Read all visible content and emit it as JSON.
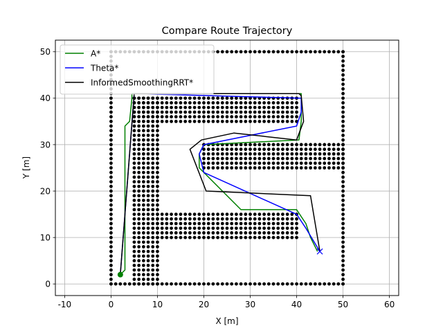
{
  "chart_data": {
    "type": "line",
    "title": "Compare Route Trajectory",
    "xlabel": "X [m]",
    "ylabel": "Y [m]",
    "xlim": [
      -12,
      62
    ],
    "ylim": [
      -2.5,
      52.5
    ],
    "xticks": [
      -10,
      0,
      10,
      20,
      30,
      40,
      50,
      60
    ],
    "yticks": [
      0,
      10,
      20,
      30,
      40,
      50
    ],
    "grid": true,
    "legend_position": "top-left",
    "start": {
      "x": 2,
      "y": 2,
      "color": "#008000"
    },
    "goal": {
      "x": 45,
      "y": 7,
      "color": "#0000ff",
      "marker": "x"
    },
    "obstacles": {
      "color": "#000000",
      "lines": [
        {
          "x": [
            0,
            50
          ],
          "y": [
            0,
            0
          ]
        },
        {
          "x": [
            0,
            50
          ],
          "y": [
            50,
            50
          ]
        },
        {
          "x": [
            0,
            0
          ],
          "y": [
            0,
            50
          ]
        },
        {
          "x": [
            50,
            50
          ],
          "y": [
            0,
            50
          ]
        }
      ],
      "rects": [
        {
          "x": [
            5,
            10
          ],
          "y": [
            0,
            40
          ]
        },
        {
          "x": [
            5,
            40
          ],
          "y": [
            35,
            40
          ]
        },
        {
          "x": [
            20,
            50
          ],
          "y": [
            25,
            30
          ]
        },
        {
          "x": [
            10,
            40
          ],
          "y": [
            10,
            15
          ]
        }
      ]
    },
    "series": [
      {
        "name": "A*",
        "color": "#008000",
        "x": [
          2,
          3,
          3,
          4,
          4.5,
          4.5,
          22,
          41,
          41,
          40.5,
          20,
          19,
          19,
          28,
          40,
          42,
          43,
          44.5
        ],
        "y": [
          2,
          3,
          34,
          35,
          40,
          41,
          41,
          41,
          35,
          31,
          30,
          28,
          25,
          16,
          16,
          13,
          10,
          7
        ]
      },
      {
        "name": "Theta*",
        "color": "#0000ff",
        "x": [
          2,
          5,
          41,
          41,
          40,
          20,
          19,
          20,
          40,
          42,
          45
        ],
        "y": [
          2,
          41,
          40,
          37,
          34,
          30,
          28,
          24,
          15,
          12,
          7
        ]
      },
      {
        "name": "InformedSmoothingRRT*",
        "color": "#000000",
        "x": [
          2,
          5,
          22,
          40.5,
          41,
          41.5,
          40,
          26.5,
          19.5,
          17,
          20.5,
          43,
          45
        ],
        "y": [
          2,
          41,
          41,
          41,
          40.5,
          35,
          31,
          32.5,
          31,
          29,
          20,
          19,
          7
        ]
      }
    ]
  }
}
